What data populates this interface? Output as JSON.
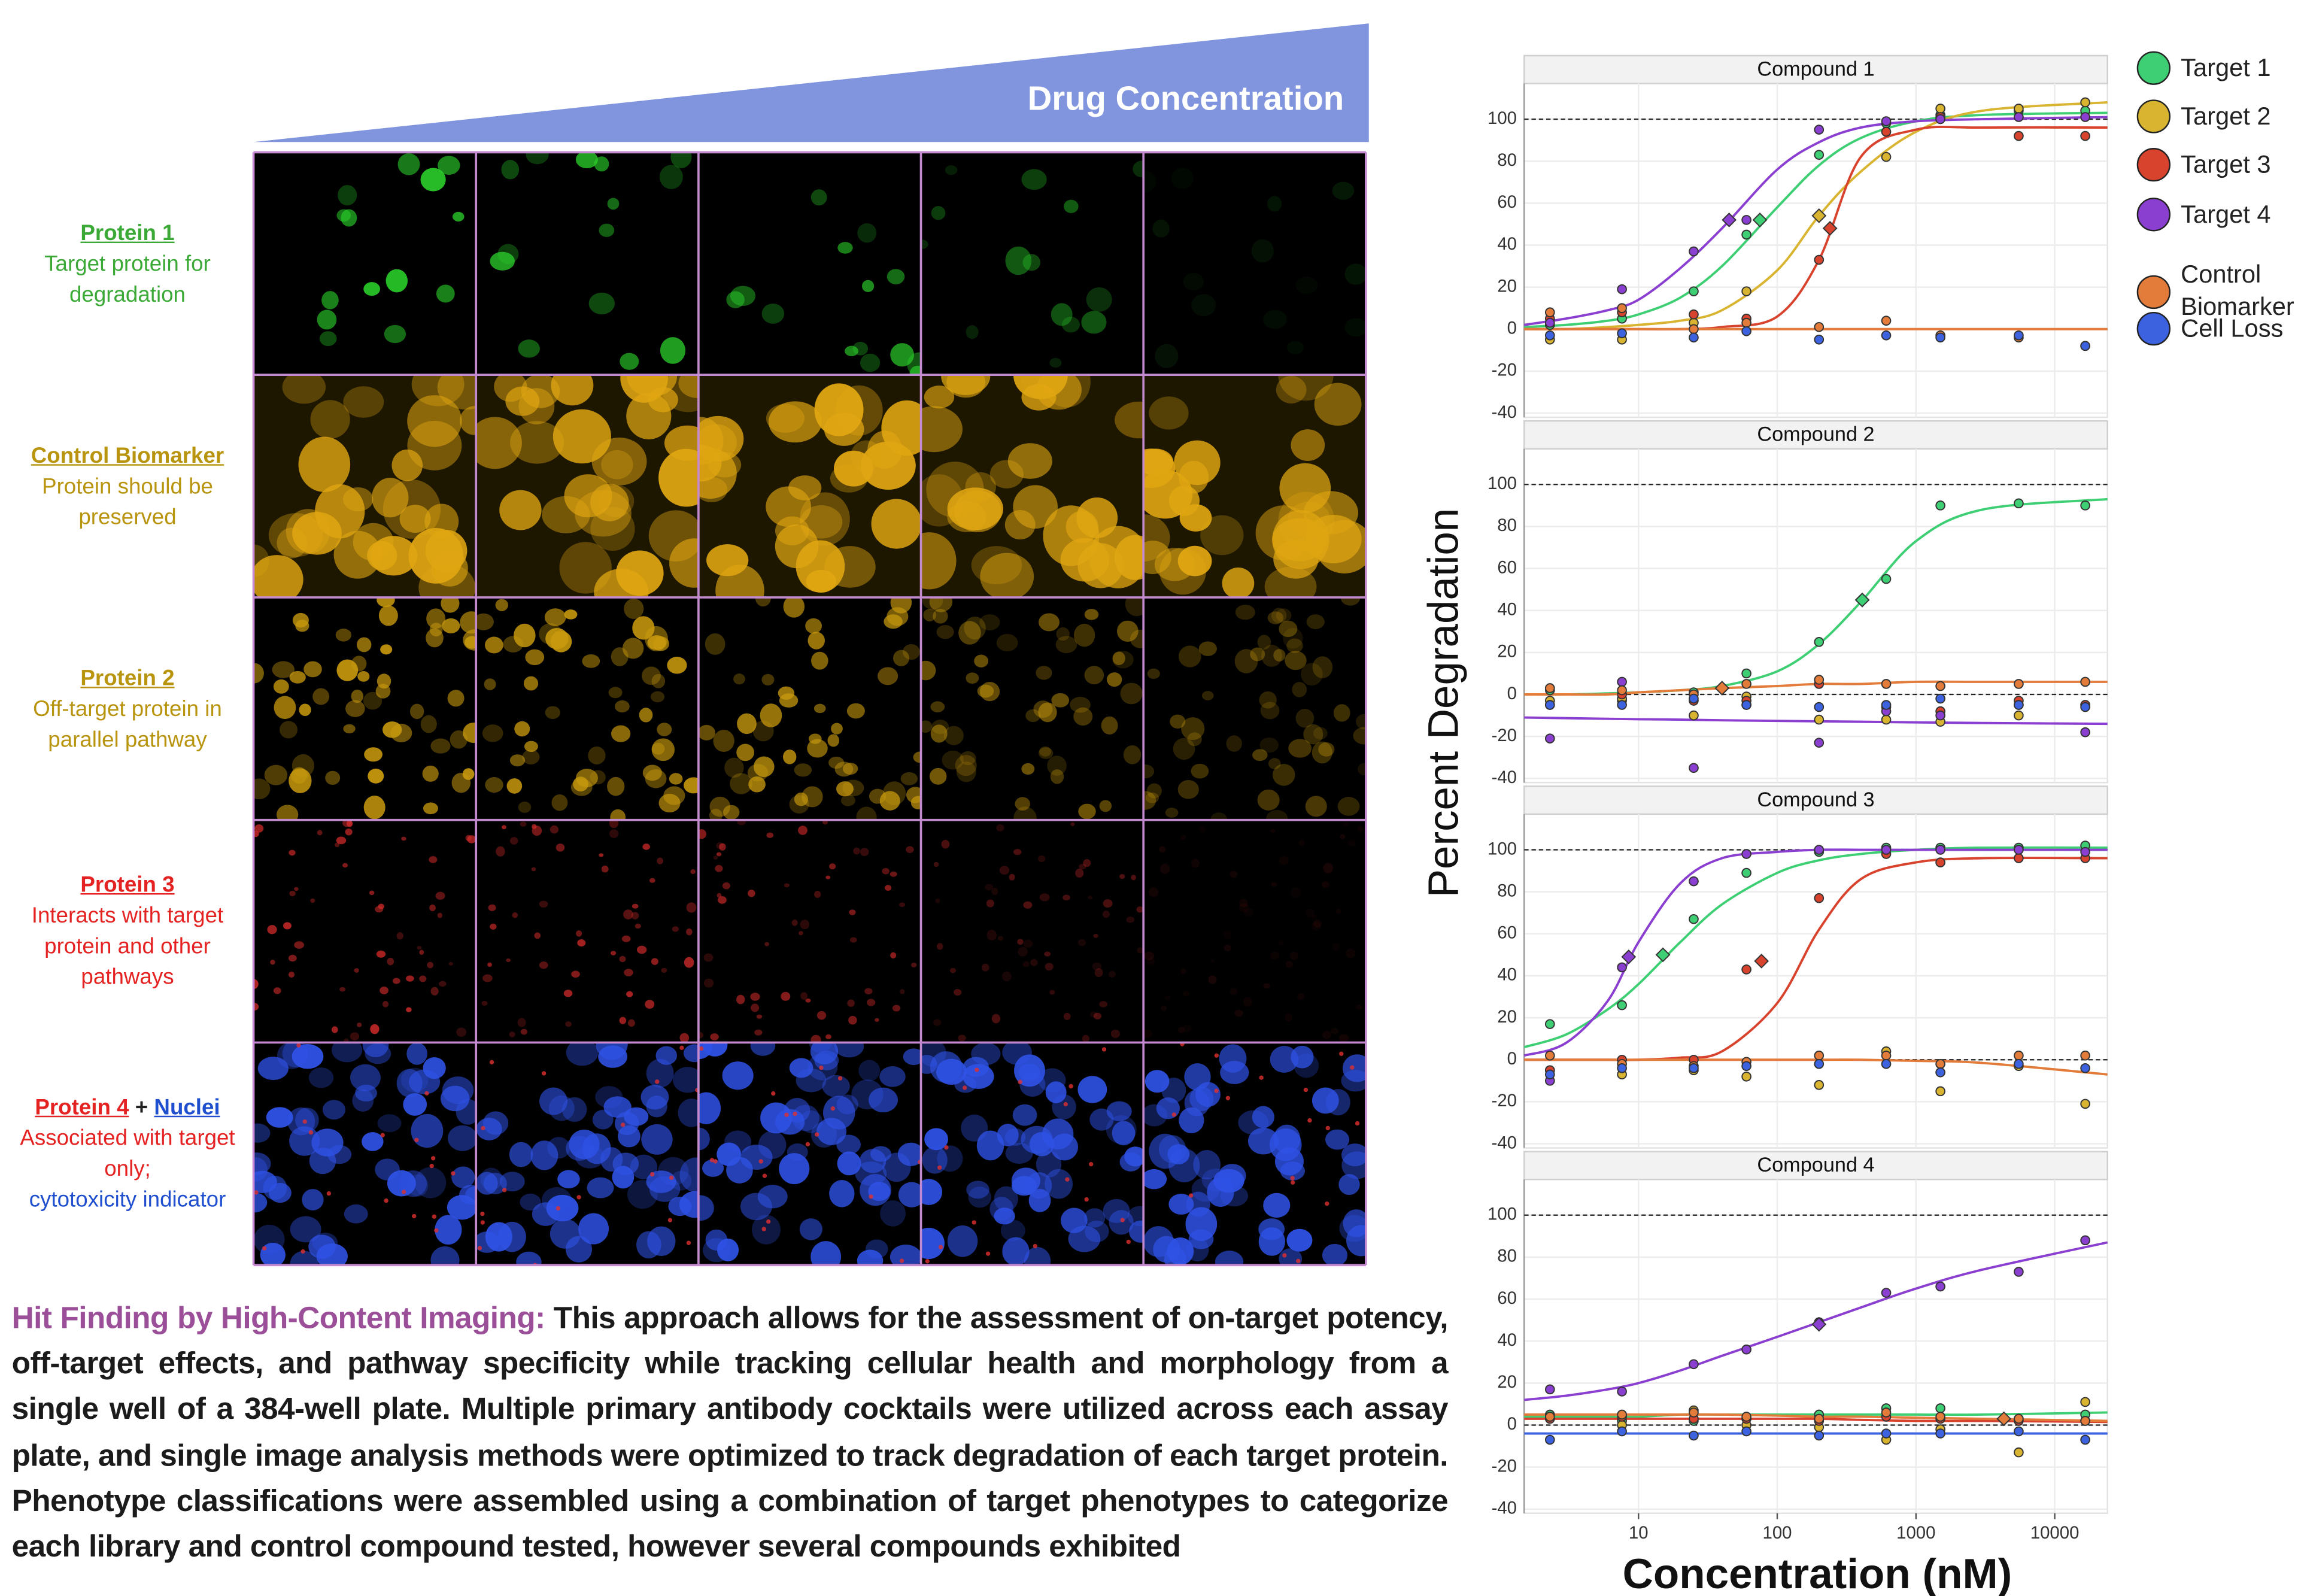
{
  "banner": "Drug Concentration",
  "rows": [
    {
      "title": "Protein 1",
      "text": "Target protein for degradation"
    },
    {
      "title": "Control Biomarker",
      "text": "Protein should be preserved"
    },
    {
      "title": "Protein 2",
      "text": "Off-target protein in parallel pathway"
    },
    {
      "title": "Protein 3",
      "text": "Interacts with target protein and other pathways"
    },
    {
      "title": "Protein 4",
      "joiner": "+",
      "title2": "Nuclei",
      "text": "Associated with target only;",
      "text2": "cytotoxicity indicator"
    }
  ],
  "body": {
    "lead": "Hit Finding by High-Content Imaging:",
    "text": "This approach allows for the assessment of on-target potency, off-target effects, and pathway specificity while tracking cellular health and morphology from a single well of a 384-well plate. Multiple primary antibody cocktails were utilized across each assay plate, and single image analysis methods were optimized to track degradation of each target protein. Phenotype classifications were assembled using a combination of target phenotypes to categorize each library and control compound tested, however several compounds exhibited"
  },
  "figure": {
    "ylabel": "Percent Degradation",
    "xlabel": "Concentration (nM)"
  },
  "chart_data": [
    {
      "type": "scatter",
      "title": "Compound 1",
      "xscale": "log",
      "xlim": [
        1.5,
        24000
      ],
      "xticks": [
        10,
        100,
        1000,
        10000
      ],
      "ylim": [
        -42,
        117
      ],
      "yticks": [
        -40,
        -20,
        0,
        20,
        40,
        60,
        80,
        100
      ],
      "grid": true,
      "hlines": [
        0,
        100
      ],
      "x": [
        2.3,
        7.6,
        25,
        60,
        200,
        610,
        1500,
        5500,
        16600
      ],
      "fit_x": [
        1.5,
        3,
        6,
        10,
        20,
        40,
        100,
        200,
        400,
        1000,
        3000,
        24000
      ],
      "series": [
        {
          "name": "Target 1",
          "color": "#3ecf74",
          "values": [
            2,
            5,
            18,
            45,
            83,
            98,
            102,
            104,
            104
          ],
          "fit": [
            1,
            2,
            4,
            7,
            15,
            30,
            58,
            78,
            91,
            99,
            102,
            103
          ],
          "ec50_x": 75,
          "ec50_y": 52
        },
        {
          "name": "Target 2",
          "color": "#d9b430",
          "values": [
            -5,
            -5,
            3,
            18,
            54,
            82,
            105,
            105,
            108
          ],
          "fit": [
            0,
            0,
            1,
            2,
            4,
            9,
            28,
            54,
            75,
            94,
            104,
            108
          ],
          "ec50_x": 200,
          "ec50_y": 54
        },
        {
          "name": "Target 3",
          "color": "#d8432e",
          "values": [
            5,
            8,
            7,
            5,
            33,
            94,
            101,
            92,
            92
          ],
          "fit": [
            0,
            0,
            0,
            0,
            0,
            1,
            6,
            33,
            82,
            95,
            96,
            96
          ],
          "ec50_x": 240,
          "ec50_y": 48
        },
        {
          "name": "Target 4",
          "color": "#8b3fd0",
          "values": [
            3,
            19,
            37,
            52,
            95,
            99,
            100,
            101,
            101
          ],
          "fit": [
            2,
            5,
            9,
            14,
            29,
            48,
            76,
            89,
            96,
            99,
            100,
            101
          ],
          "ec50_x": 45,
          "ec50_y": 52
        },
        {
          "name": "Control Biomarker",
          "color": "#e37c3a",
          "values": [
            8,
            10,
            0,
            3,
            1,
            4,
            -3,
            -4,
            -8
          ],
          "fit": [
            0,
            0,
            0,
            0,
            0,
            0,
            0,
            0,
            0,
            0,
            0,
            0
          ]
        },
        {
          "name": "Cell Loss",
          "color": "#3c62df",
          "values": [
            -3,
            -2,
            -4,
            -1,
            -5,
            -3,
            -4,
            -3,
            -8
          ]
        }
      ]
    },
    {
      "type": "scatter",
      "title": "Compound 2",
      "xscale": "log",
      "xlim": [
        1.5,
        24000
      ],
      "xticks": [
        10,
        100,
        1000,
        10000
      ],
      "ylim": [
        -42,
        117
      ],
      "yticks": [
        -40,
        -20,
        0,
        20,
        40,
        60,
        80,
        100
      ],
      "grid": true,
      "hlines": [
        0,
        100
      ],
      "x": [
        2.3,
        7.6,
        25,
        60,
        200,
        610,
        1500,
        5500,
        16600
      ],
      "fit_x": [
        1.5,
        3,
        6,
        10,
        20,
        40,
        100,
        200,
        400,
        1000,
        3000,
        24000
      ],
      "series": [
        {
          "color": "#3ecf74",
          "values": [
            2,
            -3,
            1,
            10,
            25,
            55,
            90,
            91,
            90
          ],
          "fit": [
            0,
            0,
            0.5,
            1,
            2,
            4,
            11,
            24,
            44,
            73,
            88,
            93
          ],
          "ec50_x": 410,
          "ec50_y": 45
        },
        {
          "color": "#d9b430",
          "values": [
            -3,
            -2,
            -10,
            -1,
            -12,
            -12,
            -13,
            -10,
            -5
          ]
        },
        {
          "color": "#d8432e",
          "values": [
            -5,
            0,
            -3,
            -3,
            5,
            -6,
            -8,
            -3,
            -5
          ]
        },
        {
          "color": "#8b3fd0",
          "values": [
            -21,
            6,
            -35,
            -5,
            -23,
            -8,
            -10,
            -5,
            -18
          ],
          "fit": [
            -11,
            -11.3,
            -11.6,
            -11.8,
            -12,
            -12.3,
            -12.6,
            -12.8,
            -13,
            -13.3,
            -13.6,
            -14
          ]
        },
        {
          "color": "#e37c3a",
          "values": [
            3,
            2,
            0,
            5,
            7,
            5,
            4,
            5,
            6
          ],
          "fit": [
            0,
            0,
            0,
            1,
            2,
            3,
            4,
            5,
            5,
            6,
            6,
            6
          ],
          "ec50_x": 40,
          "ec50_y": 3
        },
        {
          "color": "#3c62df",
          "values": [
            -5,
            -5,
            -2,
            -5,
            -6,
            -5,
            -2,
            -5,
            -6
          ]
        }
      ]
    },
    {
      "type": "scatter",
      "title": "Compound 3",
      "xscale": "log",
      "xlim": [
        1.5,
        24000
      ],
      "xticks": [
        10,
        100,
        1000,
        10000
      ],
      "ylim": [
        -42,
        117
      ],
      "yticks": [
        -40,
        -20,
        0,
        20,
        40,
        60,
        80,
        100
      ],
      "grid": true,
      "hlines": [
        0,
        100
      ],
      "x": [
        2.3,
        7.6,
        25,
        60,
        200,
        610,
        1500,
        5500,
        16600
      ],
      "fit_x": [
        1.5,
        3,
        6,
        10,
        20,
        40,
        100,
        200,
        400,
        1000,
        3000,
        24000
      ],
      "series": [
        {
          "color": "#3ecf74",
          "values": [
            17,
            26,
            67,
            89,
            99,
            101,
            101,
            101,
            102
          ],
          "fit": [
            6,
            12,
            24,
            36,
            56,
            74,
            89,
            95,
            98,
            100,
            101,
            101
          ],
          "ec50_x": 15,
          "ec50_y": 50
        },
        {
          "color": "#d9b430",
          "values": [
            -5,
            -7,
            -5,
            -8,
            -12,
            4,
            -15,
            -3,
            -21
          ]
        },
        {
          "color": "#d8432e",
          "values": [
            -5,
            0,
            0,
            43,
            77,
            98,
            94,
            96,
            96
          ],
          "fit": [
            0,
            0,
            0,
            0,
            1,
            4,
            27,
            62,
            86,
            94,
            96,
            96
          ],
          "ec50_x": 77,
          "ec50_y": 47
        },
        {
          "color": "#8b3fd0",
          "values": [
            -10,
            44,
            85,
            98,
            100,
            100,
            100,
            100,
            99
          ],
          "fit": [
            2,
            8,
            28,
            56,
            84,
            96,
            99,
            100,
            100,
            100,
            100,
            100
          ],
          "ec50_x": 8.5,
          "ec50_y": 49
        },
        {
          "color": "#e37c3a",
          "values": [
            2,
            -2,
            -3,
            -1,
            2,
            2,
            -2,
            2,
            2
          ],
          "fit": [
            0,
            0,
            0,
            0,
            0,
            0,
            0,
            0,
            0,
            -0.5,
            -1.5,
            -7
          ]
        },
        {
          "color": "#3c62df",
          "values": [
            -7,
            -4,
            -4,
            -3,
            -2,
            -2,
            -6,
            -2,
            -4
          ]
        }
      ]
    },
    {
      "type": "scatter",
      "title": "Compound 4",
      "xscale": "log",
      "xlim": [
        1.5,
        24000
      ],
      "xticks": [
        10,
        100,
        1000,
        10000
      ],
      "ylim": [
        -42,
        117
      ],
      "yticks": [
        -40,
        -20,
        0,
        20,
        40,
        60,
        80,
        100
      ],
      "grid": true,
      "hlines": [
        0,
        100
      ],
      "x": [
        2.3,
        7.6,
        25,
        60,
        200,
        610,
        1500,
        5500,
        16600
      ],
      "fit_x": [
        1.5,
        3,
        6,
        10,
        20,
        40,
        100,
        200,
        400,
        1000,
        3000,
        24000
      ],
      "series": [
        {
          "color": "#3ecf74",
          "values": [
            5,
            2,
            2,
            3,
            5,
            8,
            8,
            3,
            5
          ],
          "fit": [
            4,
            4,
            4,
            4,
            5,
            5,
            5,
            5,
            5,
            5,
            5,
            6
          ]
        },
        {
          "color": "#d9b430",
          "values": [
            3,
            0,
            7,
            0,
            -1,
            -7,
            -2,
            -13,
            11
          ]
        },
        {
          "color": "#d8432e",
          "values": [
            3,
            4,
            3,
            3,
            2,
            4,
            3,
            2,
            2
          ],
          "fit": [
            3,
            3,
            3,
            3,
            3,
            3,
            3,
            3,
            2.5,
            2,
            2,
            1.5
          ]
        },
        {
          "color": "#8b3fd0",
          "values": [
            17,
            16,
            29,
            36,
            49,
            63,
            66,
            73,
            88
          ],
          "fit": [
            12,
            14,
            17,
            20,
            26,
            33,
            42,
            49,
            56,
            65,
            74,
            87
          ],
          "ec50_x": 200,
          "ec50_y": 48
        },
        {
          "color": "#e37c3a",
          "values": [
            4,
            5,
            6,
            4,
            3,
            6,
            4,
            3,
            2
          ],
          "fit": [
            5,
            5,
            5,
            5,
            5,
            5,
            4.5,
            4,
            4,
            3.5,
            3,
            2
          ],
          "ec50_x": 4300,
          "ec50_y": 3
        },
        {
          "color": "#3c62df",
          "values": [
            -7,
            -3,
            -5,
            -3,
            -5,
            -4,
            -4,
            -3,
            -7
          ],
          "fit": [
            -4,
            -4,
            -4,
            -4,
            -4,
            -4,
            -4,
            -4,
            -4,
            -4,
            -4,
            -4
          ]
        }
      ]
    }
  ]
}
